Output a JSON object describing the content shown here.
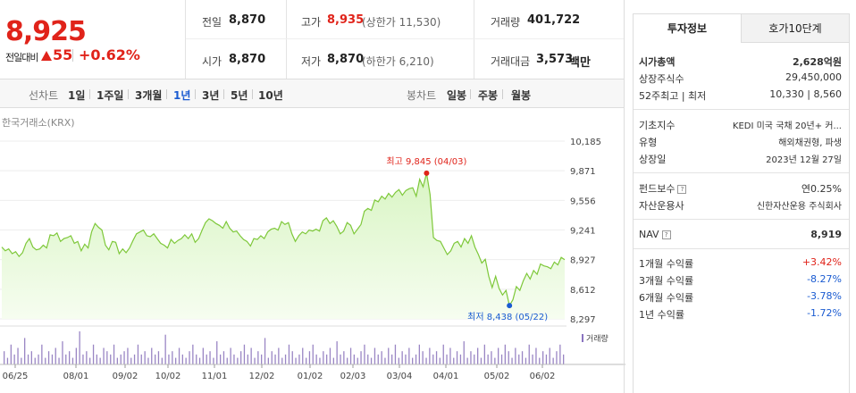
{
  "price": {
    "current": "8,925",
    "change_label": "전일대비",
    "change": "55",
    "change_pct": "+0.62%"
  },
  "stats": {
    "prev": {
      "label": "전일",
      "value": "8,870"
    },
    "high": {
      "label": "고가",
      "value": "8,935",
      "sub": "(상한가 11,530)"
    },
    "volume": {
      "label": "거래량",
      "value": "401,722"
    },
    "open": {
      "label": "시가",
      "value": "8,870"
    },
    "low": {
      "label": "저가",
      "value": "8,870",
      "sub": "(하한가 6,210)"
    },
    "amount": {
      "label": "거래대금",
      "value": "3,573",
      "unit": "백만"
    }
  },
  "toolbar": {
    "line_label": "선차트",
    "periods": [
      "1일",
      "1주일",
      "3개월",
      "1년",
      "3년",
      "5년",
      "10년"
    ],
    "candle_label": "봉차트",
    "candles": [
      "일봉",
      "주봉",
      "월봉"
    ]
  },
  "chart": {
    "exchange": "한국거래소(KRX)",
    "high_label": "최고 9,845 (04/03)",
    "low_label": "최저 8,438 (05/22)",
    "volume_legend": "거래량",
    "line_color": "#7ec83a",
    "fill_color": "#d9f5c4",
    "high_color": "#e0231a",
    "low_color": "#1a5bd1"
  },
  "chart_data": {
    "type": "area",
    "yticks": [
      "10,185",
      "9,871",
      "9,556",
      "9,241",
      "8,927",
      "8,612",
      "8,297"
    ],
    "ylim": [
      8297,
      10185
    ],
    "xticks": [
      "06/25",
      "08/01",
      "09/02",
      "10/02",
      "11/01",
      "12/02",
      "01/02",
      "02/03",
      "03/04",
      "04/01",
      "05/02",
      "06/02"
    ],
    "series": [
      {
        "values": [
          9060,
          9020,
          9040,
          8990,
          9010,
          8960,
          9000,
          9100,
          9150,
          9060,
          9030,
          9040,
          9080,
          9050,
          9190,
          9180,
          9210,
          9120,
          9150,
          9160,
          9180,
          9100,
          9120,
          9020,
          9090,
          9050,
          9220,
          9310,
          9270,
          9240,
          9080,
          9030,
          9120,
          9110,
          8990,
          9040,
          9000,
          9050,
          9130,
          9200,
          9220,
          9240,
          9180,
          9170,
          9200,
          9150,
          9100,
          9080,
          9050,
          9140,
          9100,
          9130,
          9150,
          9190,
          9150,
          9200,
          9110,
          9150,
          9240,
          9320,
          9360,
          9340,
          9310,
          9290,
          9260,
          9330,
          9260,
          9220,
          9230,
          9180,
          9140,
          9120,
          9070,
          9150,
          9140,
          9180,
          9150,
          9220,
          9250,
          9260,
          9240,
          9330,
          9300,
          9320,
          9200,
          9120,
          9180,
          9220,
          9200,
          9240,
          9230,
          9250,
          9230,
          9340,
          9370,
          9310,
          9340,
          9280,
          9200,
          9230,
          9320,
          9290,
          9200,
          9250,
          9300,
          9440,
          9470,
          9450,
          9560,
          9540,
          9600,
          9570,
          9630,
          9590,
          9640,
          9670,
          9610,
          9660,
          9680,
          9690,
          9600,
          9780,
          9700,
          9845,
          9620,
          9160,
          9130,
          9120,
          9050,
          8980,
          9020,
          9100,
          9120,
          9060,
          9150,
          9100,
          9180,
          9060,
          8980,
          8890,
          8930,
          8750,
          8630,
          8750,
          8620,
          8550,
          8600,
          8438,
          8500,
          8640,
          8600,
          8700,
          8780,
          8720,
          8810,
          8770,
          8880,
          8860,
          8850,
          8830,
          8900,
          8870,
          8950,
          8925
        ]
      }
    ],
    "volume": [
      4,
      2,
      6,
      3,
      5,
      2,
      8,
      3,
      4,
      2,
      3,
      6,
      2,
      4,
      3,
      5,
      2,
      7,
      3,
      4,
      2,
      5,
      10,
      3,
      4,
      2,
      6,
      3,
      2,
      5,
      4,
      3,
      6,
      2,
      3,
      4,
      5,
      2,
      3,
      6,
      3,
      4,
      2,
      5,
      3,
      4,
      2,
      9,
      3,
      4,
      2,
      5,
      3,
      2,
      4,
      6,
      3,
      2,
      5,
      3,
      4,
      2,
      7,
      3,
      4,
      2,
      5,
      3,
      2,
      4,
      6,
      3,
      5,
      2,
      4,
      3,
      8,
      2,
      4,
      3,
      5,
      2,
      3,
      6,
      4,
      2,
      3,
      5,
      2,
      4,
      6,
      3,
      2,
      4,
      3,
      5,
      2,
      7,
      3,
      4,
      2,
      5,
      3,
      2,
      4,
      6,
      3,
      2,
      5,
      3,
      4,
      2,
      5,
      3,
      6,
      2,
      4,
      3,
      5,
      2,
      3,
      6,
      4,
      2,
      5,
      3,
      4,
      2,
      6,
      3,
      5,
      2,
      4,
      3,
      7,
      2,
      4,
      3,
      5,
      2,
      6,
      3,
      4,
      2,
      5,
      3,
      6,
      4,
      2,
      5,
      3,
      4,
      2,
      6,
      3,
      5,
      2,
      4,
      3,
      5,
      2,
      4,
      6,
      3
    ]
  },
  "panel": {
    "tabs": [
      "투자정보",
      "호가10단계"
    ],
    "market_cap": {
      "label": "시가총액",
      "value": "2,628억원"
    },
    "shares": {
      "label": "상장주식수",
      "value": "29,450,000"
    },
    "week52": {
      "label": "52주최고 | 최저",
      "high": "10,330",
      "low": "8,560"
    },
    "index": {
      "label": "기초지수",
      "value": "KEDI 미국 국채 20년+ 커..."
    },
    "type": {
      "label": "유형",
      "value": "해외채권형, 파생"
    },
    "listed": {
      "label": "상장일",
      "value": "2023년 12월 27일"
    },
    "fee": {
      "label": "펀드보수",
      "value": "연0.25%"
    },
    "manager": {
      "label": "자산운용사",
      "value": "신한자산운용 주식회사"
    },
    "nav": {
      "label": "NAV",
      "value": "8,919"
    },
    "returns": [
      {
        "label": "1개월 수익률",
        "value": "+3.42%",
        "color": "#e0231a"
      },
      {
        "label": "3개월 수익률",
        "value": "-8.27%",
        "color": "#1a5bd1"
      },
      {
        "label": "6개월 수익률",
        "value": "-3.78%",
        "color": "#1a5bd1"
      },
      {
        "label": "1년 수익률",
        "value": "-1.72%",
        "color": "#1a5bd1"
      }
    ]
  }
}
